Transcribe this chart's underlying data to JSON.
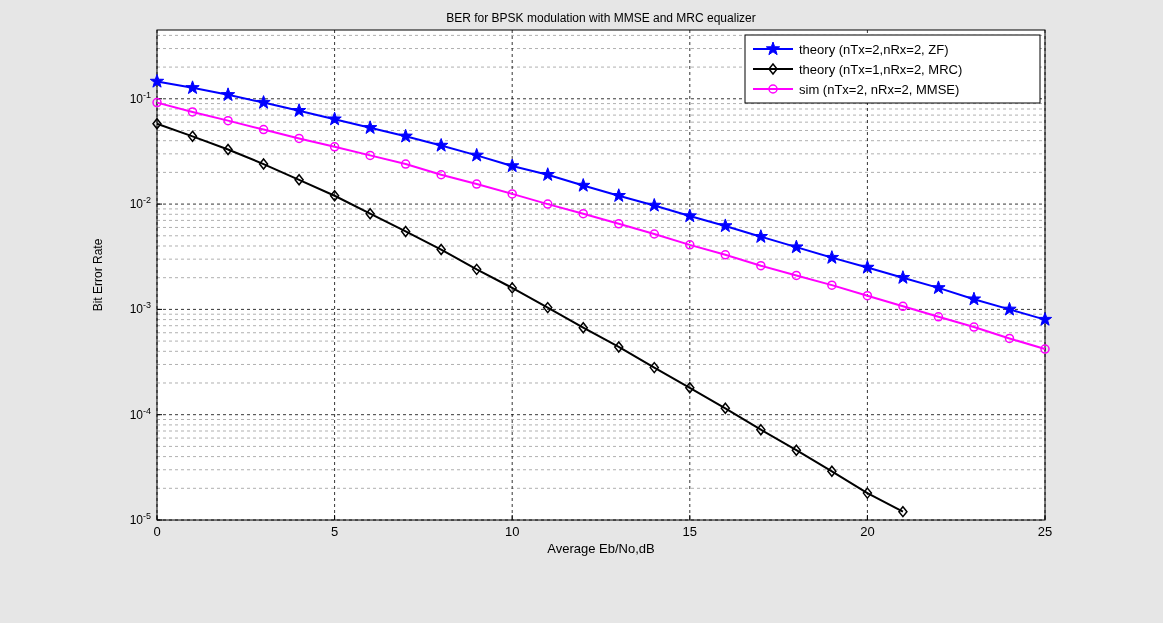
{
  "chart_data": {
    "type": "line",
    "title": "BER for BPSK modulation with MMSE and MRC equalizer",
    "xlabel": "Average Eb/No,dB",
    "ylabel": "Bit Error Rate",
    "x": [
      0,
      1,
      2,
      3,
      4,
      5,
      6,
      7,
      8,
      9,
      10,
      11,
      12,
      13,
      14,
      15,
      16,
      17,
      18,
      19,
      20,
      21,
      22,
      23,
      24,
      25
    ],
    "series": [
      {
        "name": "theory (nTx=2,nRx=2, ZF)",
        "color": "#0000ff",
        "marker": "star",
        "values": [
          0.146,
          0.127,
          0.109,
          0.092,
          0.077,
          0.064,
          0.053,
          0.044,
          0.036,
          0.029,
          0.023,
          0.019,
          0.015,
          0.012,
          0.0097,
          0.0077,
          0.0062,
          0.0049,
          0.0039,
          0.0031,
          0.0025,
          0.002,
          0.0016,
          0.00125,
          0.001,
          0.0008
        ]
      },
      {
        "name": "theory (nTx=1,nRx=2, MRC)",
        "color": "#000000",
        "marker": "diamond",
        "values": [
          0.058,
          0.044,
          0.033,
          0.024,
          0.017,
          0.012,
          0.0081,
          0.0055,
          0.0037,
          0.0024,
          0.0016,
          0.00104,
          0.00067,
          0.00044,
          0.00028,
          0.00018,
          0.000115,
          7.2e-05,
          4.6e-05,
          2.9e-05,
          1.8e-05,
          1.2e-05,
          null,
          null,
          null,
          null
        ]
      },
      {
        "name": "sim (nTx=2, nRx=2, MMSE)",
        "color": "#ff00ff",
        "marker": "circle",
        "values": [
          0.092,
          0.075,
          0.062,
          0.051,
          0.042,
          0.035,
          0.029,
          0.024,
          0.019,
          0.0155,
          0.0125,
          0.01,
          0.0081,
          0.0065,
          0.0052,
          0.0041,
          0.0033,
          0.0026,
          0.0021,
          0.0017,
          0.00135,
          0.00107,
          0.00085,
          0.00068,
          0.00053,
          0.00042
        ]
      }
    ],
    "log": true,
    "xlim": [
      0,
      25
    ],
    "xticks": [
      0,
      5,
      10,
      15,
      20,
      25
    ],
    "ylim": [
      1e-05,
      0.45
    ],
    "yticks": [
      {
        "value": 1e-05,
        "label": "10$^{-5}$"
      },
      {
        "value": 0.0001,
        "label": "10$^{-4}$"
      },
      {
        "value": 0.001,
        "label": "10$^{-3}$"
      },
      {
        "value": 0.01,
        "label": "10$^{-2}$"
      },
      {
        "value": 0.1,
        "label": "10$^{-1}$"
      }
    ],
    "grid": true,
    "legend": "top right",
    "line_style": "solid"
  }
}
